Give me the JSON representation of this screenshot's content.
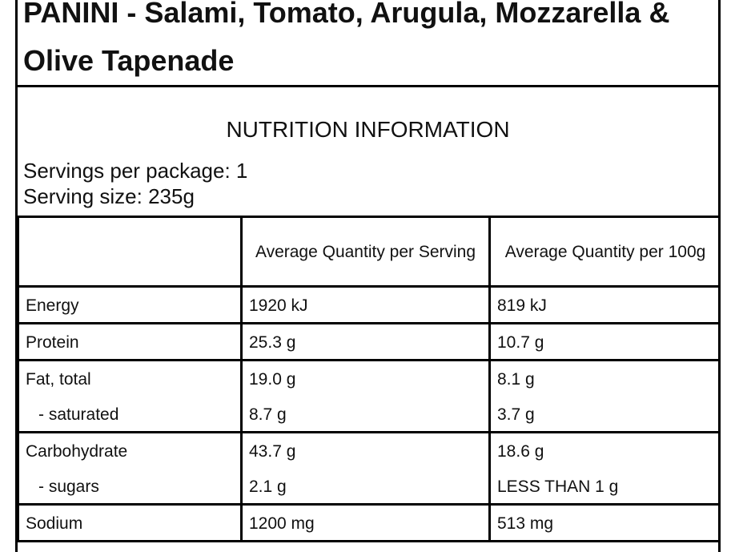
{
  "title": "PANINI - Salami, Tomato, Arugula, Mozzarella & Olive Tapenade",
  "heading": "NUTRITION INFORMATION",
  "servings": [
    "Servings per package: 1",
    "Serving size: 235g"
  ],
  "table": {
    "header": [
      "Average Quantity per Serving",
      "Average Quantity per 100g"
    ],
    "rows": [
      [
        [
          "Energy"
        ],
        [
          "1920 kJ"
        ],
        [
          "819 kJ"
        ]
      ],
      [
        [
          "Protein"
        ],
        [
          "25.3 g"
        ],
        [
          "10.7 g"
        ]
      ],
      [
        [
          "Fat, total",
          "- saturated"
        ],
        [
          "19.0 g",
          "8.7 g"
        ],
        [
          "8.1 g",
          "3.7 g"
        ]
      ],
      [
        [
          "Carbohydrate",
          "- sugars"
        ],
        [
          "43.7 g",
          "2.1 g"
        ],
        [
          "18.6 g",
          "LESS THAN 1 g"
        ]
      ],
      [
        [
          "Sodium"
        ],
        [
          "1200 mg"
        ],
        [
          "513 mg"
        ]
      ]
    ]
  }
}
